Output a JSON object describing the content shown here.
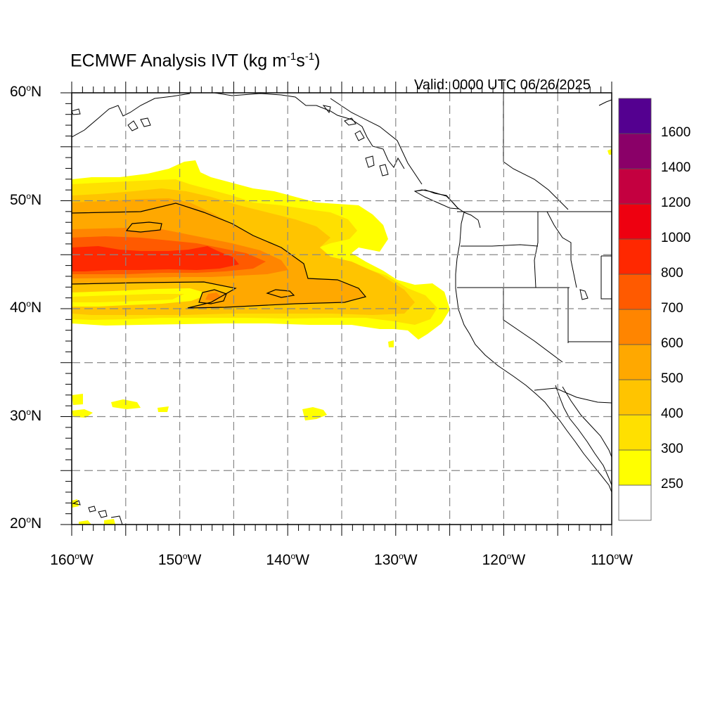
{
  "title": {
    "main": "ECMWF Analysis IVT (kg m",
    "sup1": "-1",
    "mid": "s",
    "sup2": "-1",
    "end": ")"
  },
  "valid_text": "Valid: 0000 UTC 06/26/2025",
  "lat_labels": [
    {
      "deg": "60",
      "hem": "N"
    },
    {
      "deg": "50",
      "hem": "N"
    },
    {
      "deg": "40",
      "hem": "N"
    },
    {
      "deg": "30",
      "hem": "N"
    },
    {
      "deg": "20",
      "hem": "N"
    }
  ],
  "lon_labels": [
    {
      "deg": "160",
      "hem": "W"
    },
    {
      "deg": "150",
      "hem": "W"
    },
    {
      "deg": "140",
      "hem": "W"
    },
    {
      "deg": "130",
      "hem": "W"
    },
    {
      "deg": "120",
      "hem": "W"
    },
    {
      "deg": "110",
      "hem": "W"
    }
  ],
  "colorbar": {
    "labels": [
      "250",
      "300",
      "400",
      "500",
      "600",
      "700",
      "800",
      "1000",
      "1200",
      "1400",
      "1600"
    ],
    "colors": [
      "#ffffff",
      "#ffff00",
      "#ffe000",
      "#ffc400",
      "#ffa800",
      "#ff8500",
      "#ff5a00",
      "#ff2800",
      "#ee0010",
      "#c40040",
      "#8a0068",
      "#540090"
    ]
  },
  "map": {
    "lon_range": [
      -160,
      -110
    ],
    "lat_range": [
      20,
      60
    ],
    "grid_interval_deg": 5,
    "contour_level": 500
  }
}
